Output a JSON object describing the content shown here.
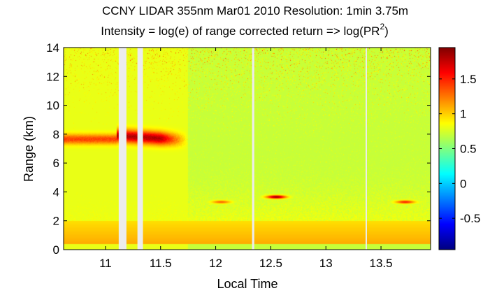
{
  "chart_data": {
    "type": "heatmap",
    "title": "CCNY LIDAR 355nm Mar01 2010 Resolution: 1min 3.75m",
    "subtitle_prefix": "Intensity = log(e) of range corrected return => log(PR",
    "subtitle_sup": "2",
    "subtitle_suffix": ")",
    "xlabel": "Local Time",
    "ylabel": "Range (km)",
    "xlim": [
      10.62,
      13.95
    ],
    "ylim": [
      0,
      14
    ],
    "x_ticks": [
      11,
      11.5,
      12,
      12.5,
      13,
      13.5
    ],
    "x_tick_labels": [
      "11",
      "11.5",
      "12",
      "12.5",
      "13",
      "13.5"
    ],
    "y_ticks": [
      0,
      2,
      4,
      6,
      8,
      10,
      12,
      14
    ],
    "y_tick_labels": [
      "0",
      "2",
      "4",
      "6",
      "8",
      "10",
      "12",
      "14"
    ],
    "colorbar": {
      "colormap": "jet",
      "clim": [
        -0.95,
        1.95
      ],
      "ticks": [
        -0.5,
        0,
        0.5,
        1,
        1.5
      ],
      "tick_labels": [
        "-0.5",
        "0",
        "0.5",
        "1",
        "1.5"
      ]
    },
    "data_gaps": [
      {
        "x_start": 11.12,
        "x_end": 11.19
      },
      {
        "x_start": 11.29,
        "x_end": 11.34
      },
      {
        "x_start": 12.33,
        "x_end": 12.35
      },
      {
        "x_start": 13.36,
        "x_end": 13.37
      }
    ],
    "features": [
      {
        "kind": "boundary_layer",
        "y_range": [
          0.4,
          2.0
        ],
        "value": 1.1
      },
      {
        "kind": "cloud_layer",
        "x_range": [
          10.62,
          11.75
        ],
        "y_center": 7.6,
        "value": 1.8
      },
      {
        "kind": "cloud",
        "x_center": 12.55,
        "y_center": 3.65,
        "value": 1.9
      },
      {
        "kind": "cloud",
        "x_center": 12.05,
        "y_center": 3.3,
        "value": 1.3
      },
      {
        "kind": "cloud",
        "x_center": 13.72,
        "y_center": 3.3,
        "value": 1.5
      }
    ],
    "grid": false,
    "colors": {
      "gap": "#ececec",
      "axes": "#000000"
    }
  }
}
